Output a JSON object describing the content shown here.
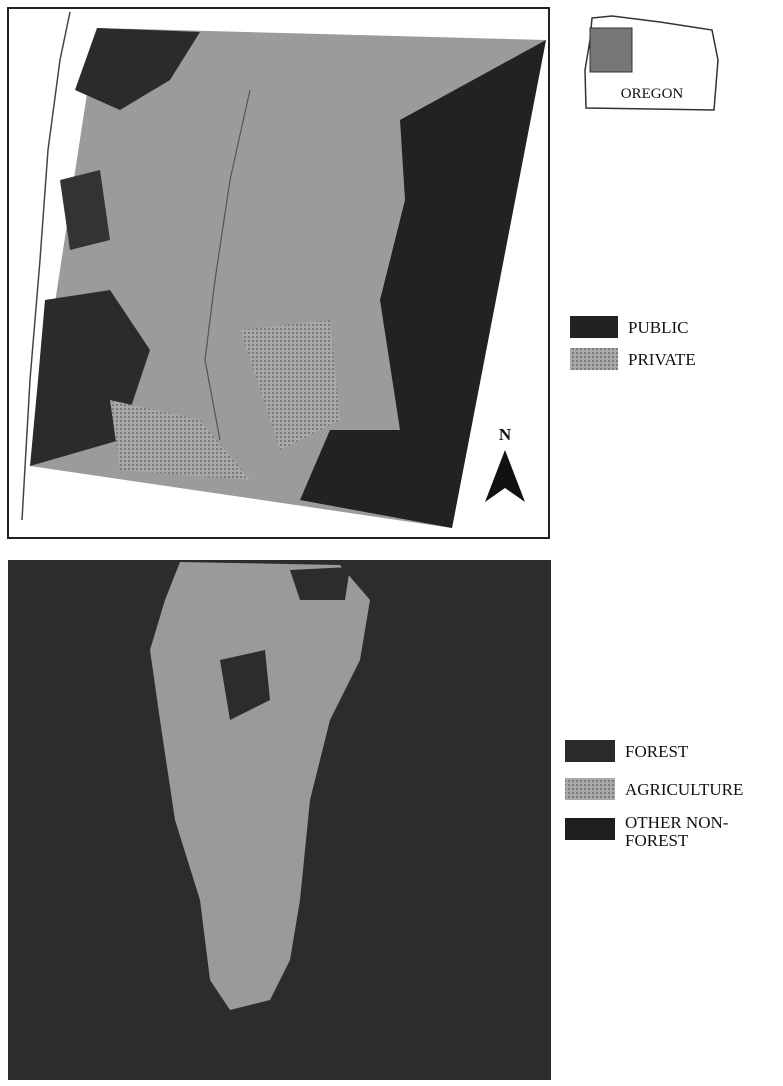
{
  "inset": {
    "label": "OREGON"
  },
  "ownership_legend": {
    "items": [
      "PUBLIC",
      "PRIVATE"
    ]
  },
  "north_arrow": {
    "label": "N"
  },
  "landcover_legend": {
    "items": [
      [
        "FOREST"
      ],
      [
        "AGRICULTURE"
      ],
      [
        "OTHER NON-",
        "FOREST"
      ]
    ]
  }
}
